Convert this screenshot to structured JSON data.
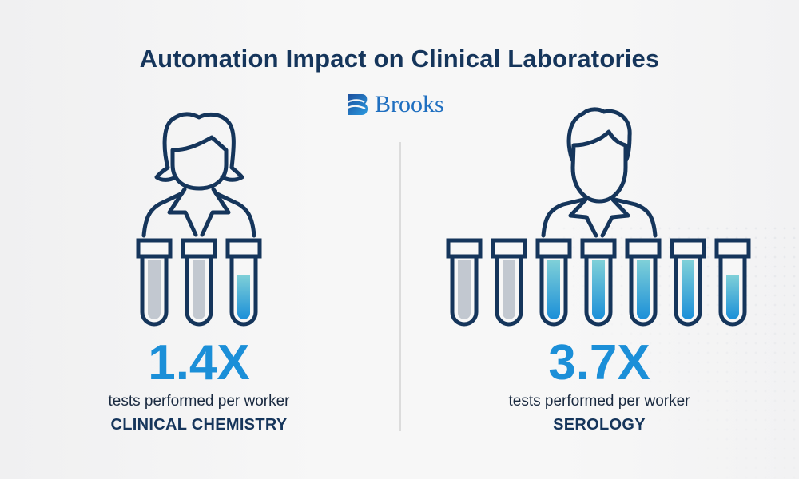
{
  "title": "Automation Impact on Clinical Laboratories",
  "logo": {
    "text": "Brooks",
    "icon": "brooks-logo-icon"
  },
  "colors": {
    "navy": "#15355b",
    "accent": "#1b8fd8",
    "gray_fill": "#c2c8d0",
    "teal_top": "#7fd0d8"
  },
  "panels": [
    {
      "figure": "female-worker-icon",
      "multiplier": "1.4X",
      "description": "tests performed per worker",
      "category": "CLINICAL CHEMISTRY",
      "tubes": [
        {
          "kind": "baseline",
          "fill": 1.0
        },
        {
          "kind": "baseline",
          "fill": 1.0
        },
        {
          "kind": "automated",
          "fill": 0.75
        }
      ]
    },
    {
      "figure": "male-worker-icon",
      "multiplier": "3.7X",
      "description": "tests performed per worker",
      "category": "SEROLOGY",
      "tubes": [
        {
          "kind": "baseline",
          "fill": 1.0
        },
        {
          "kind": "baseline",
          "fill": 1.0
        },
        {
          "kind": "automated",
          "fill": 1.0
        },
        {
          "kind": "automated",
          "fill": 1.0
        },
        {
          "kind": "automated",
          "fill": 1.0
        },
        {
          "kind": "automated",
          "fill": 1.0
        },
        {
          "kind": "automated",
          "fill": 0.75
        }
      ]
    }
  ]
}
